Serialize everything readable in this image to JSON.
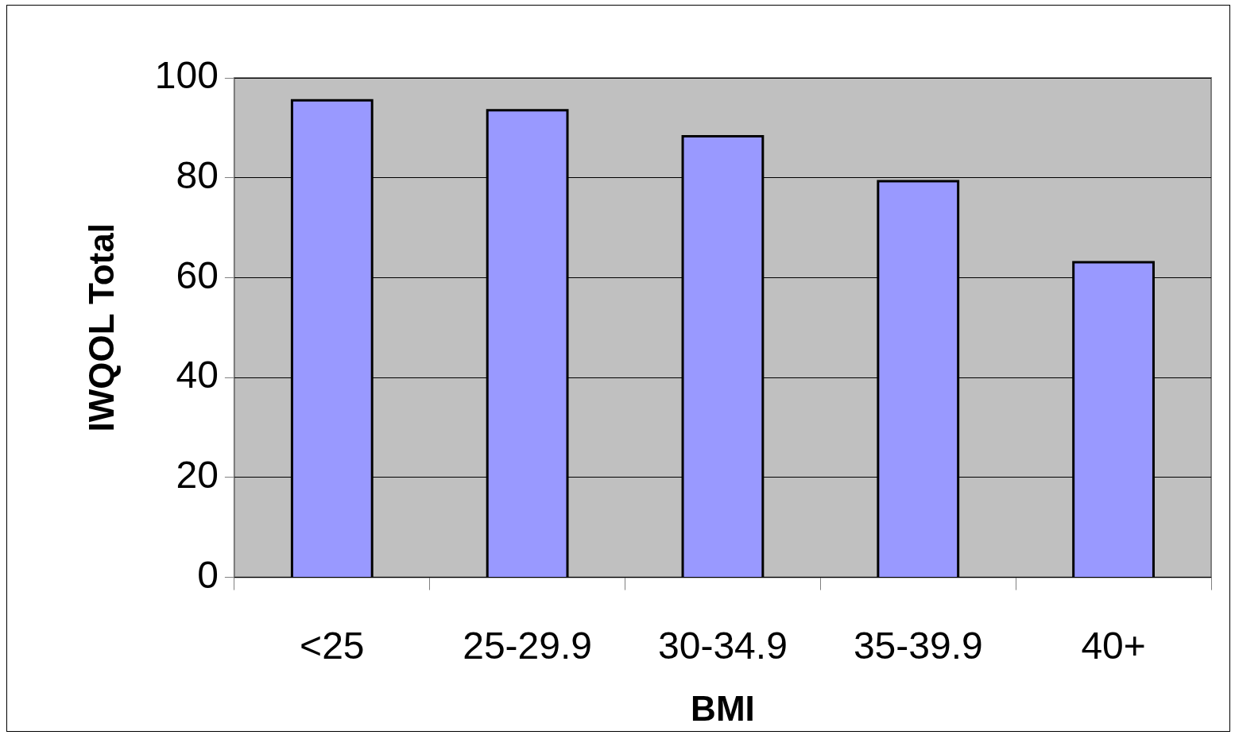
{
  "chart_data": {
    "type": "bar",
    "xlabel": "BMI",
    "ylabel": "IWQOL Total",
    "categories": [
      "<25",
      "25-29.9",
      "30-34.9",
      "35-39.9",
      "40+"
    ],
    "values": [
      95.5,
      93.5,
      88.3,
      79.3,
      63.1
    ],
    "color": "#9999ff",
    "ylim": [
      0,
      100
    ],
    "yticks": [
      0,
      20,
      40,
      60,
      80,
      100
    ],
    "grid": "y",
    "legend": false
  }
}
